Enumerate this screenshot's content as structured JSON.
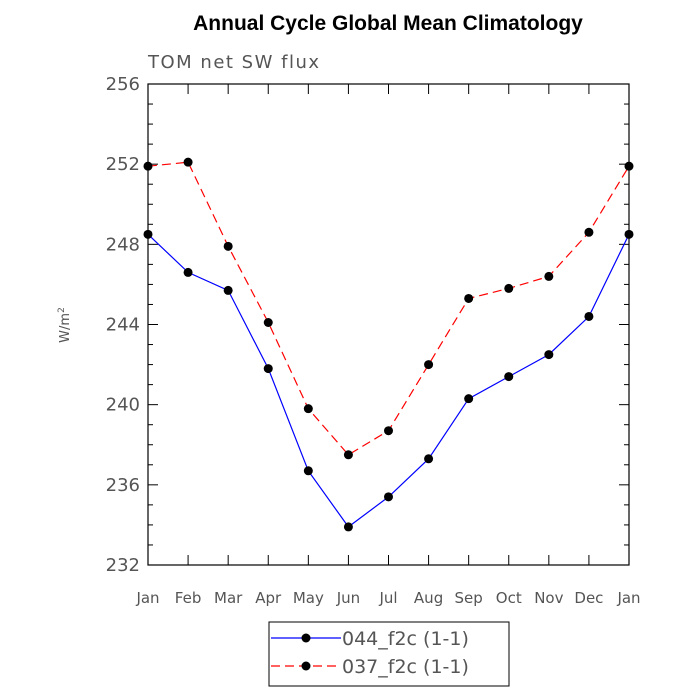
{
  "chart_data": {
    "type": "line",
    "title": "Annual Cycle Global Mean Climatology",
    "subtitle": "TOM net SW flux",
    "ylabel": "W/m",
    "ylabel_superscript": "2",
    "xlabel": "",
    "categories": [
      "Jan",
      "Feb",
      "Mar",
      "Apr",
      "May",
      "Jun",
      "Jul",
      "Aug",
      "Sep",
      "Oct",
      "Nov",
      "Dec",
      "Jan"
    ],
    "ylim": [
      232,
      256
    ],
    "yticks": [
      "232",
      "236",
      "240",
      "244",
      "248",
      "252",
      "256"
    ],
    "grid": false,
    "legend_position": "bottom",
    "series": [
      {
        "name": "044_f2c (1-1)",
        "color": "#0000ff",
        "line_style": "solid",
        "marker": "filled-circle",
        "values": [
          248.5,
          246.6,
          245.7,
          241.8,
          236.7,
          233.9,
          235.4,
          237.3,
          240.3,
          241.4,
          242.5,
          244.4,
          248.5
        ]
      },
      {
        "name": "037_f2c (1-1)",
        "color": "#ff0000",
        "line_style": "dashed",
        "marker": "filled-circle",
        "values": [
          251.9,
          252.1,
          247.9,
          244.1,
          239.8,
          237.5,
          238.7,
          242.0,
          245.3,
          245.8,
          246.4,
          248.6,
          251.9
        ]
      }
    ]
  }
}
